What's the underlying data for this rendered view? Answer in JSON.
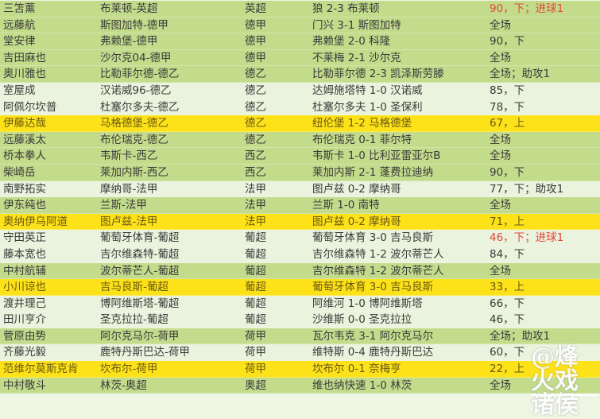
{
  "colors": {
    "green_row": "#c3dc8c",
    "light_row": "#eaf3dd",
    "highlight_row": "#fde21a",
    "goal_text": "#e2473a"
  },
  "rows": [
    {
      "name": "三笘薰",
      "team": "布莱顿-英超",
      "league": "英超",
      "match": "狼 2-3 布莱顿",
      "status": "90，下；进球1",
      "style": "green",
      "goal": true
    },
    {
      "name": "远藤航",
      "team": "斯图加特-德甲",
      "league": "德甲",
      "match": "门兴 3-1 斯图加特",
      "status": "全场",
      "style": "green"
    },
    {
      "name": "堂安律",
      "team": "弗赖堡-德甲",
      "league": "德甲",
      "match": "弗赖堡 2-0 科隆",
      "status": "90，下",
      "style": "green"
    },
    {
      "name": "吉田麻也",
      "team": "沙尔克04-德甲",
      "league": "德甲",
      "match": "不莱梅 2-1 沙尔克",
      "status": "全场",
      "style": "green"
    },
    {
      "name": "奥川雅也",
      "team": "比勒菲尔德-德乙",
      "league": "德乙",
      "match": "比勒菲尔德 2-3 凯泽斯劳滕",
      "status": "全场；助攻1",
      "style": "green"
    },
    {
      "name": "室屋成",
      "team": "汉诺威96-德乙",
      "league": "德乙",
      "match": "达姆施塔特 1-0 汉诺威",
      "status": "85，下",
      "style": "light"
    },
    {
      "name": "阿佩尔坎普",
      "team": "杜塞尔多夫-德乙",
      "league": "德乙",
      "match": "杜塞尔多夫 1-0 圣保利",
      "status": "78，下",
      "style": "light"
    },
    {
      "name": "伊藤达哉",
      "team": "马格德堡-德乙",
      "league": "德乙",
      "match": "纽伦堡 1-2 马格德堡",
      "status": "67，上",
      "style": "yellow"
    },
    {
      "name": "远藤溪太",
      "team": "布伦瑞克-德乙",
      "league": "德乙",
      "match": "布伦瑞克 0-1 菲尔特",
      "status": "全场",
      "style": "green"
    },
    {
      "name": "桥本拳人",
      "team": "韦斯卡-西乙",
      "league": "西乙",
      "match": "韦斯卡 1-0 比利亚雷亚尔B",
      "status": "全场",
      "style": "green"
    },
    {
      "name": "柴崎岳",
      "team": "莱加内斯-西乙",
      "league": "西乙",
      "match": "莱加内斯 2-1 蓬费拉迪纳",
      "status": "90，下",
      "style": "green"
    },
    {
      "name": "南野拓实",
      "team": "摩纳哥-法甲",
      "league": "法甲",
      "match": "图卢兹 0-2 摩纳哥",
      "status": "77，下；助攻1",
      "style": "light"
    },
    {
      "name": "伊东纯也",
      "team": "兰斯-法甲",
      "league": "法甲",
      "match": "兰斯 1-0 南特",
      "status": "全场",
      "style": "green"
    },
    {
      "name": "奥纳伊乌阿道",
      "team": "图卢兹-法甲",
      "league": "法甲",
      "match": "图卢兹 0-2 摩纳哥",
      "status": "71，上",
      "style": "yellow"
    },
    {
      "name": "守田英正",
      "team": "葡萄牙体育-葡超",
      "league": "葡超",
      "match": "葡萄牙体育 3-0 吉马良斯",
      "status": "46，下；进球1",
      "style": "light",
      "goal": true
    },
    {
      "name": "藤本宽也",
      "team": "吉尔维森特-葡超",
      "league": "葡超",
      "match": "吉尔维森特 1-2 波尔蒂芒人",
      "status": "84，下",
      "style": "light"
    },
    {
      "name": "中村航辅",
      "team": "波尔蒂芒人-葡超",
      "league": "葡超",
      "match": "吉尔维森特 1-2 波尔蒂芒人",
      "status": "全场",
      "style": "green"
    },
    {
      "name": "小川谅也",
      "team": "吉马良斯-葡超",
      "league": "葡超",
      "match": "葡萄牙体育 3-0 吉马良斯",
      "status": "33，上",
      "style": "yellow"
    },
    {
      "name": "渡井理己",
      "team": "博阿维斯塔-葡超",
      "league": "葡超",
      "match": "阿维河 1-0 博阿维斯塔",
      "status": "66，下",
      "style": "light"
    },
    {
      "name": "田川亨介",
      "team": "圣克拉拉-葡超",
      "league": "葡超",
      "match": "沙维斯 0-0 圣克拉拉",
      "status": "46，下",
      "style": "light"
    },
    {
      "name": "菅原由势",
      "team": "阿尔克马尔-荷甲",
      "league": "荷甲",
      "match": "瓦尔韦克 3-1 阿尔克马尔",
      "status": "全场；助攻1",
      "style": "green"
    },
    {
      "name": "齐藤光毅",
      "team": "鹿特丹斯巴达-荷甲",
      "league": "荷甲",
      "match": "维特斯 0-4 鹿特丹斯巴达",
      "status": "60，下",
      "style": "light"
    },
    {
      "name": "范维尔莫斯克肯",
      "team": "坎布尔-荷甲",
      "league": "荷甲",
      "match": "坎布尔 0-1 奈梅亨",
      "status": "22，上",
      "style": "yellow"
    },
    {
      "name": "中村敬斗",
      "team": "林茨-奥超",
      "league": "奥超",
      "match": "维也纳快速 1-0 林茨",
      "status": "全场",
      "style": "green"
    }
  ],
  "watermark": "@烽火戏诸侯"
}
